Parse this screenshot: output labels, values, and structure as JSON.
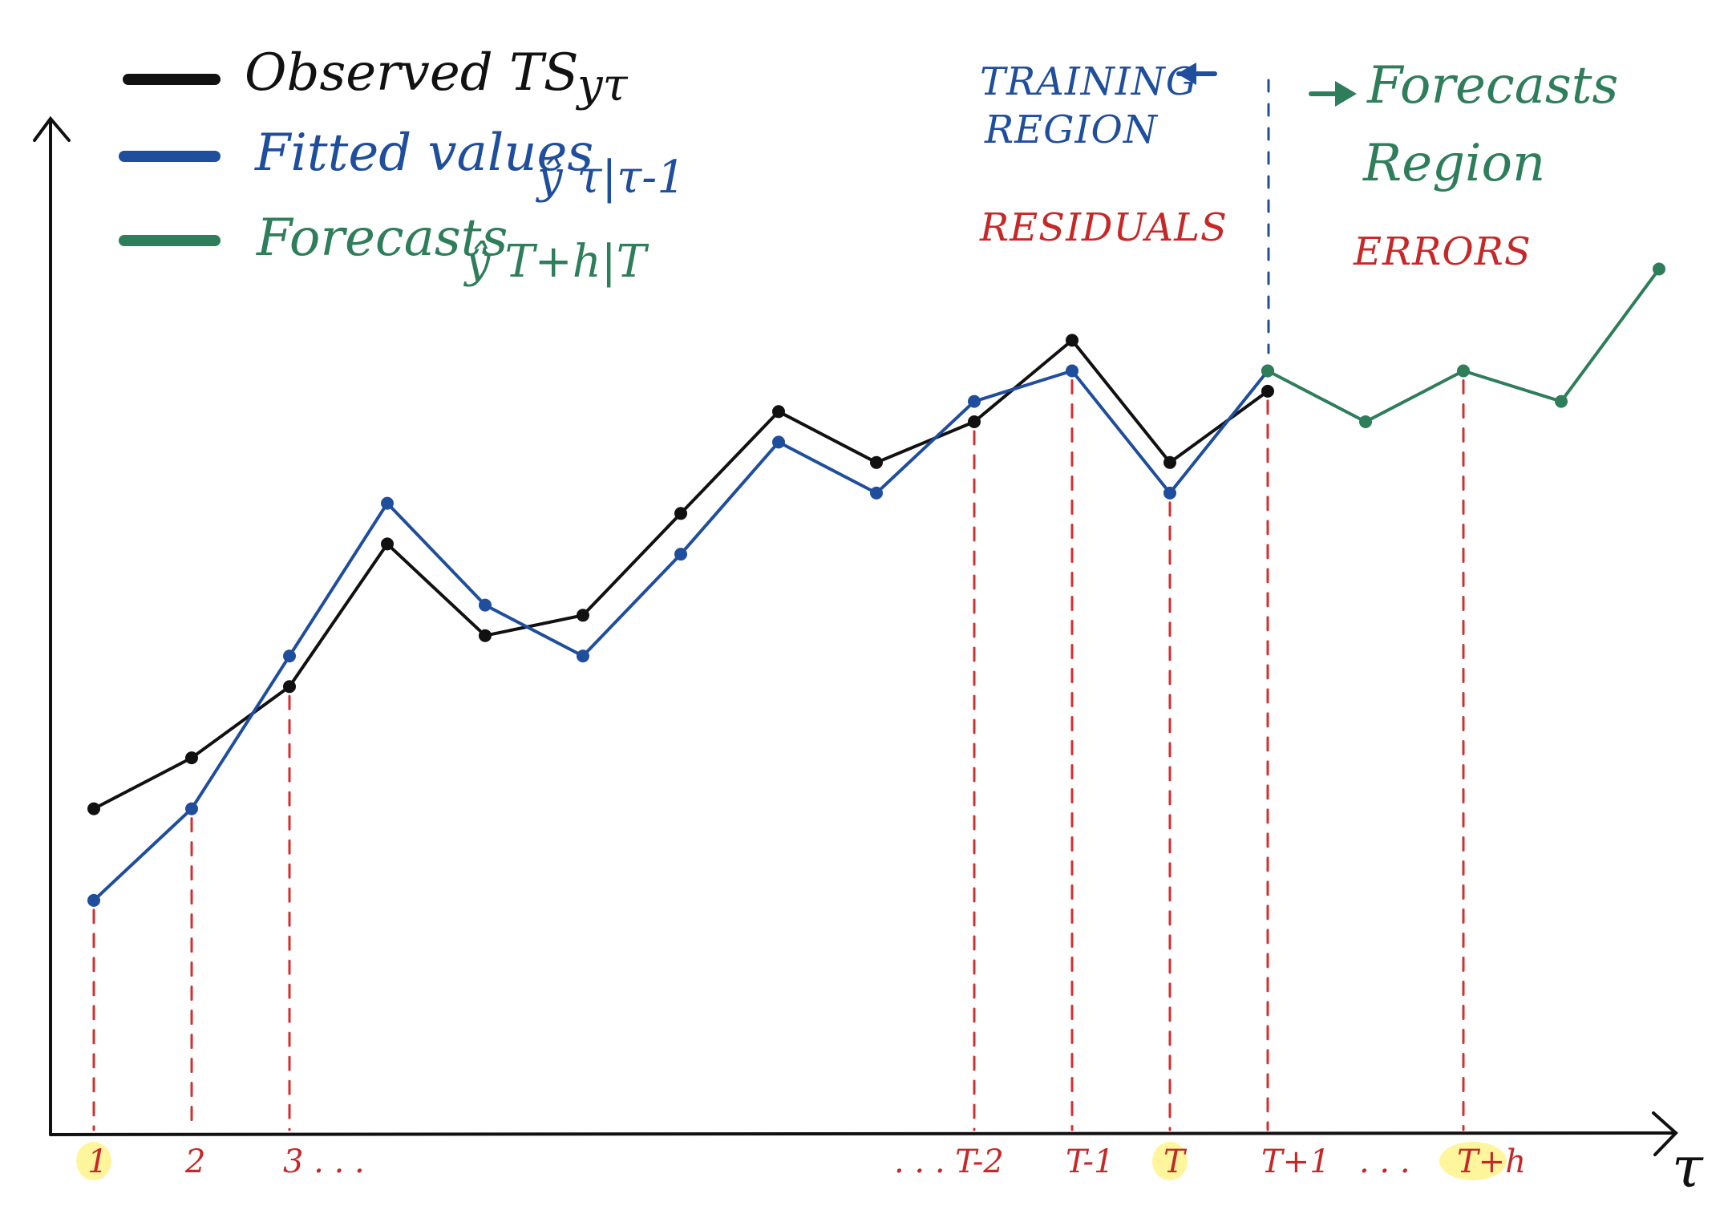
{
  "legend": {
    "observed": {
      "label": "Observed TS",
      "symbol": "yτ",
      "color": "#111111"
    },
    "fitted": {
      "label": "Fitted values",
      "symbol": "ŷ τ|τ-1",
      "color": "#1f4e9c"
    },
    "forecasts": {
      "label": "Forecasts",
      "symbol": "ŷ T+h|T",
      "color": "#2e7d5b"
    }
  },
  "regions": {
    "training": {
      "label_line1": "TRAINING",
      "label_line2": "REGION",
      "color": "#1f4e9c"
    },
    "forecast": {
      "label_line1": "Forecasts",
      "label_line2": "Region",
      "color": "#2e7d5b"
    },
    "residuals": {
      "label": "RESIDUALS",
      "color": "#c62828"
    },
    "errors": {
      "label": "ERRORS",
      "color": "#c62828"
    }
  },
  "axis": {
    "x_label": "τ"
  },
  "colors": {
    "axis": "#111111",
    "residual_line": "#d32f2f",
    "highlight": "#fff59d",
    "tick": "#c62828"
  },
  "ticks": [
    {
      "x": 1,
      "label": "1",
      "highlight": true
    },
    {
      "x": 2,
      "label": "2",
      "highlight": false
    },
    {
      "x": 3,
      "label": "3 . . .",
      "highlight": false
    },
    {
      "x": 10,
      "label": ". . . T-2",
      "highlight": false
    },
    {
      "x": 11,
      "label": "T-1",
      "highlight": false
    },
    {
      "x": 12,
      "label": "T",
      "highlight": true
    },
    {
      "x": 13,
      "label": "T+1",
      "highlight": false
    },
    {
      "x": 14,
      "label": ". . .",
      "highlight": false
    },
    {
      "x": 15,
      "label": "T+h",
      "highlight": true
    }
  ],
  "chart_data": {
    "type": "line",
    "x_domain": [
      0,
      16.5
    ],
    "y_domain": [
      0,
      10.5
    ],
    "series": [
      {
        "name": "Observed TS",
        "color": "#111111",
        "points": [
          [
            1,
            3.2
          ],
          [
            2,
            3.7
          ],
          [
            3,
            4.4
          ],
          [
            4,
            5.8
          ],
          [
            5,
            4.9
          ],
          [
            6,
            5.1
          ],
          [
            7,
            6.1
          ],
          [
            8,
            7.1
          ],
          [
            9,
            6.6
          ],
          [
            10,
            7.0
          ],
          [
            11,
            7.8
          ],
          [
            12,
            6.6
          ],
          [
            13,
            7.3
          ]
        ]
      },
      {
        "name": "Fitted values",
        "color": "#1f4e9c",
        "points": [
          [
            1,
            2.3
          ],
          [
            2,
            3.2
          ],
          [
            3,
            4.7
          ],
          [
            4,
            6.2
          ],
          [
            5,
            5.2
          ],
          [
            6,
            4.7
          ],
          [
            7,
            5.7
          ],
          [
            8,
            6.8
          ],
          [
            9,
            6.3
          ],
          [
            10,
            7.2
          ],
          [
            11,
            7.5
          ],
          [
            12,
            6.3
          ],
          [
            13,
            7.5
          ]
        ]
      },
      {
        "name": "Forecasts",
        "color": "#2e7d5b",
        "points": [
          [
            13,
            7.5
          ],
          [
            14,
            7.0
          ],
          [
            15,
            7.5
          ],
          [
            16,
            7.2
          ],
          [
            17,
            8.5
          ]
        ]
      }
    ]
  }
}
